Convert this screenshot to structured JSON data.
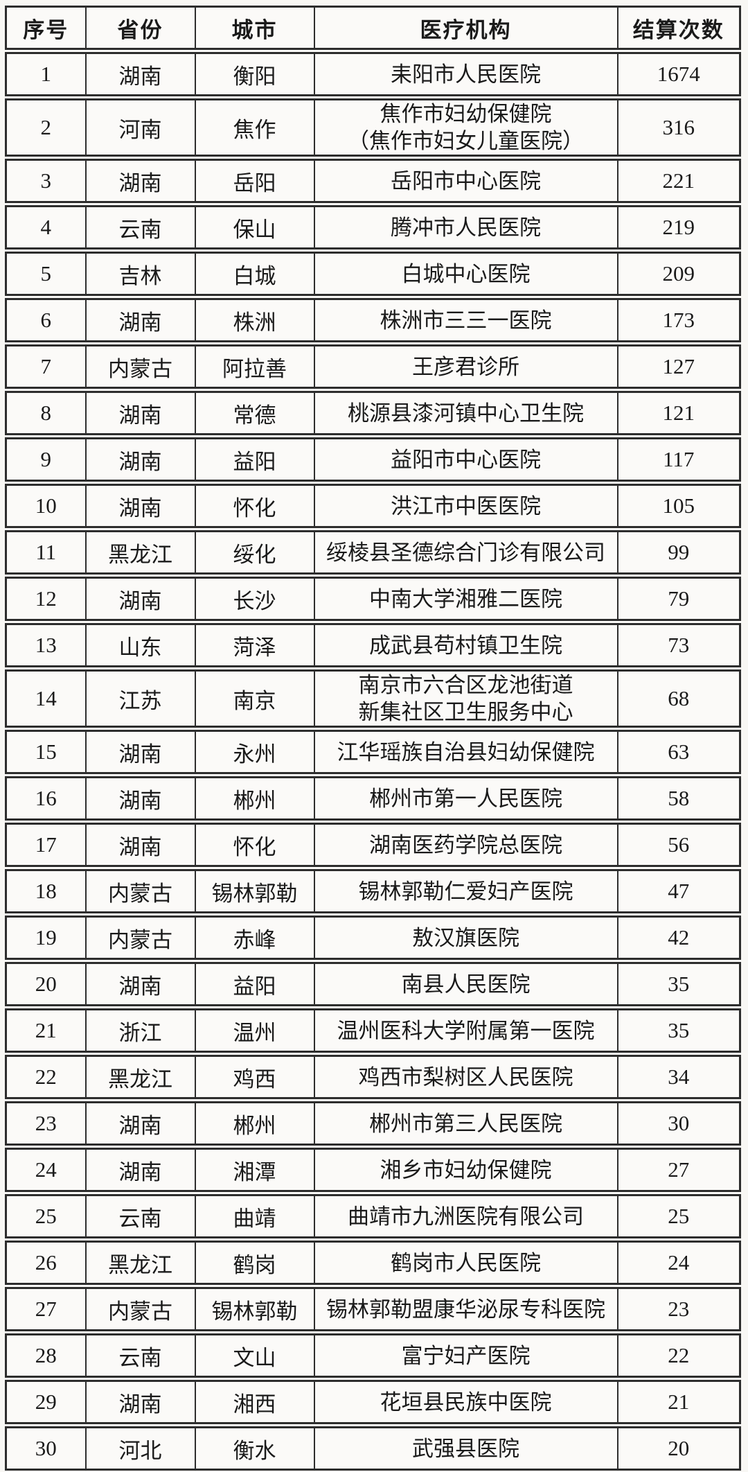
{
  "colors": {
    "background": "#f8f7f4",
    "cell_background": "#fbfaf8",
    "border": "#2d2d2d",
    "text": "#1a1a1a"
  },
  "table": {
    "columns": [
      {
        "key": "index",
        "label": "序号"
      },
      {
        "key": "province",
        "label": "省份"
      },
      {
        "key": "city",
        "label": "城市"
      },
      {
        "key": "institution",
        "label": "医疗机构"
      },
      {
        "key": "count",
        "label": "结算次数"
      }
    ],
    "rows": [
      {
        "index": "1",
        "province": "湖南",
        "city": "衡阳",
        "institution": [
          "耒阳市人民医院"
        ],
        "count": "1674"
      },
      {
        "index": "2",
        "province": "河南",
        "city": "焦作",
        "institution": [
          "焦作市妇幼保健院",
          "（焦作市妇女儿童医院）"
        ],
        "count": "316"
      },
      {
        "index": "3",
        "province": "湖南",
        "city": "岳阳",
        "institution": [
          "岳阳市中心医院"
        ],
        "count": "221"
      },
      {
        "index": "4",
        "province": "云南",
        "city": "保山",
        "institution": [
          "腾冲市人民医院"
        ],
        "count": "219"
      },
      {
        "index": "5",
        "province": "吉林",
        "city": "白城",
        "institution": [
          "白城中心医院"
        ],
        "count": "209"
      },
      {
        "index": "6",
        "province": "湖南",
        "city": "株洲",
        "institution": [
          "株洲市三三一医院"
        ],
        "count": "173"
      },
      {
        "index": "7",
        "province": "内蒙古",
        "city": "阿拉善",
        "institution": [
          "王彦君诊所"
        ],
        "count": "127"
      },
      {
        "index": "8",
        "province": "湖南",
        "city": "常德",
        "institution": [
          "桃源县漆河镇中心卫生院"
        ],
        "count": "121"
      },
      {
        "index": "9",
        "province": "湖南",
        "city": "益阳",
        "institution": [
          "益阳市中心医院"
        ],
        "count": "117"
      },
      {
        "index": "10",
        "province": "湖南",
        "city": "怀化",
        "institution": [
          "洪江市中医医院"
        ],
        "count": "105"
      },
      {
        "index": "11",
        "province": "黑龙江",
        "city": "绥化",
        "institution": [
          "绥棱县圣德综合门诊有限公司"
        ],
        "count": "99"
      },
      {
        "index": "12",
        "province": "湖南",
        "city": "长沙",
        "institution": [
          "中南大学湘雅二医院"
        ],
        "count": "79"
      },
      {
        "index": "13",
        "province": "山东",
        "city": "菏泽",
        "institution": [
          "成武县苟村镇卫生院"
        ],
        "count": "73"
      },
      {
        "index": "14",
        "province": "江苏",
        "city": "南京",
        "institution": [
          "南京市六合区龙池街道",
          "新集社区卫生服务中心"
        ],
        "count": "68"
      },
      {
        "index": "15",
        "province": "湖南",
        "city": "永州",
        "institution": [
          "江华瑶族自治县妇幼保健院"
        ],
        "count": "63"
      },
      {
        "index": "16",
        "province": "湖南",
        "city": "郴州",
        "institution": [
          "郴州市第一人民医院"
        ],
        "count": "58"
      },
      {
        "index": "17",
        "province": "湖南",
        "city": "怀化",
        "institution": [
          "湖南医药学院总医院"
        ],
        "count": "56"
      },
      {
        "index": "18",
        "province": "内蒙古",
        "city": "锡林郭勒",
        "institution": [
          "锡林郭勒仁爱妇产医院"
        ],
        "count": "47"
      },
      {
        "index": "19",
        "province": "内蒙古",
        "city": "赤峰",
        "institution": [
          "敖汉旗医院"
        ],
        "count": "42"
      },
      {
        "index": "20",
        "province": "湖南",
        "city": "益阳",
        "institution": [
          "南县人民医院"
        ],
        "count": "35"
      },
      {
        "index": "21",
        "province": "浙江",
        "city": "温州",
        "institution": [
          "温州医科大学附属第一医院"
        ],
        "count": "35"
      },
      {
        "index": "22",
        "province": "黑龙江",
        "city": "鸡西",
        "institution": [
          "鸡西市梨树区人民医院"
        ],
        "count": "34"
      },
      {
        "index": "23",
        "province": "湖南",
        "city": "郴州",
        "institution": [
          "郴州市第三人民医院"
        ],
        "count": "30"
      },
      {
        "index": "24",
        "province": "湖南",
        "city": "湘潭",
        "institution": [
          "湘乡市妇幼保健院"
        ],
        "count": "27"
      },
      {
        "index": "25",
        "province": "云南",
        "city": "曲靖",
        "institution": [
          "曲靖市九洲医院有限公司"
        ],
        "count": "25"
      },
      {
        "index": "26",
        "province": "黑龙江",
        "city": "鹤岗",
        "institution": [
          "鹤岗市人民医院"
        ],
        "count": "24"
      },
      {
        "index": "27",
        "province": "内蒙古",
        "city": "锡林郭勒",
        "institution": [
          "锡林郭勒盟康华泌尿专科医院"
        ],
        "count": "23"
      },
      {
        "index": "28",
        "province": "云南",
        "city": "文山",
        "institution": [
          "富宁妇产医院"
        ],
        "count": "22"
      },
      {
        "index": "29",
        "province": "湖南",
        "city": "湘西",
        "institution": [
          "花垣县民族中医院"
        ],
        "count": "21"
      },
      {
        "index": "30",
        "province": "河北",
        "city": "衡水",
        "institution": [
          "武强县医院"
        ],
        "count": "20"
      }
    ]
  }
}
